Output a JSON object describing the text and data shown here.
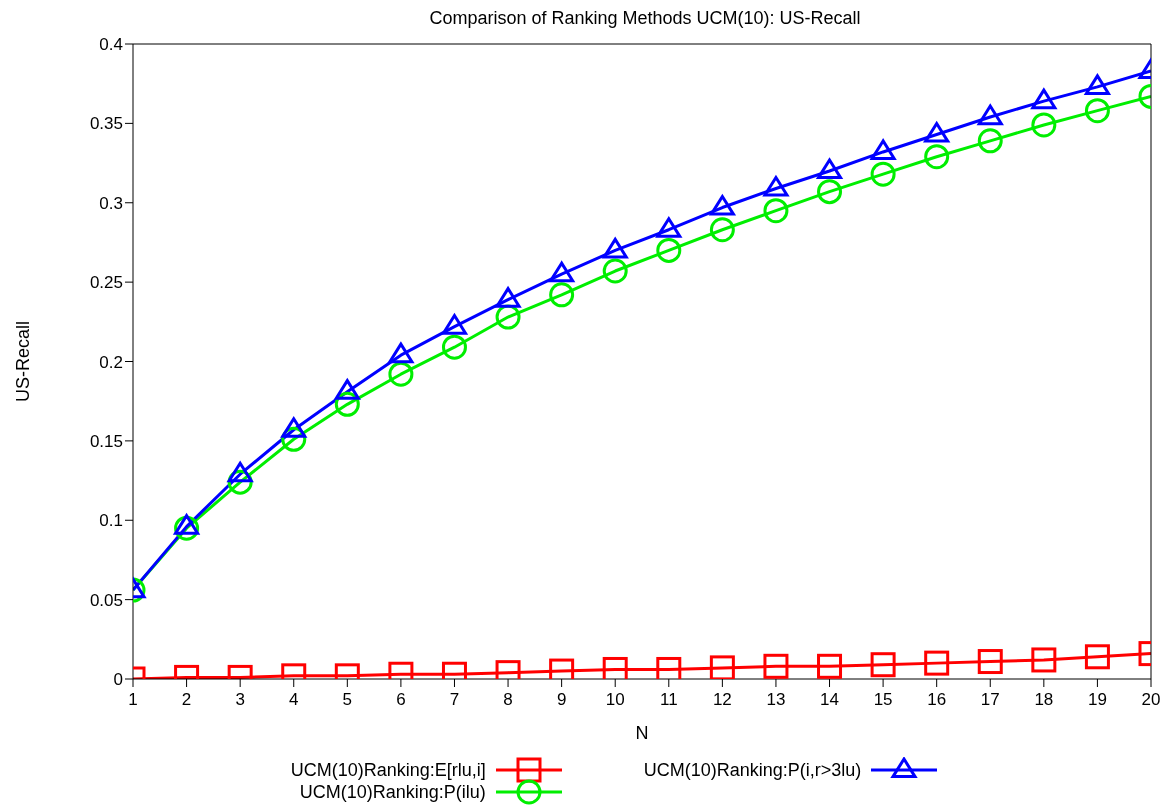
{
  "chart_data": {
    "type": "line",
    "title": "Comparison of Ranking Methods UCM(10): US-Recall",
    "xlabel": "N",
    "ylabel": "US-Recall",
    "x": [
      1,
      2,
      3,
      4,
      5,
      6,
      7,
      8,
      9,
      10,
      11,
      12,
      13,
      14,
      15,
      16,
      17,
      18,
      19,
      20
    ],
    "xlim": [
      1,
      20
    ],
    "xticks": [
      1,
      2,
      3,
      4,
      5,
      6,
      7,
      8,
      9,
      10,
      11,
      12,
      13,
      14,
      15,
      16,
      17,
      18,
      19,
      20
    ],
    "ylim": [
      0,
      0.4
    ],
    "yticks": [
      0,
      0.05,
      0.1,
      0.15,
      0.2,
      0.25,
      0.3,
      0.35,
      0.4
    ],
    "grid": false,
    "legend": "bottom",
    "line_style": "solid",
    "series": [
      {
        "name": "UCM(10)Ranking:E[rlu,i]",
        "color": "#ff0000",
        "marker": "square",
        "values": [
          0,
          0.001,
          0.001,
          0.002,
          0.002,
          0.003,
          0.003,
          0.004,
          0.005,
          0.006,
          0.006,
          0.007,
          0.008,
          0.008,
          0.009,
          0.01,
          0.011,
          0.012,
          0.014,
          0.016
        ]
      },
      {
        "name": "UCM(10)Ranking:P(ilu)",
        "color": "#00ee00",
        "marker": "circle",
        "values": [
          0.056,
          0.095,
          0.124,
          0.151,
          0.173,
          0.192,
          0.209,
          0.228,
          0.242,
          0.257,
          0.27,
          0.283,
          0.295,
          0.307,
          0.318,
          0.329,
          0.339,
          0.349,
          0.358,
          0.367
        ]
      },
      {
        "name": "UCM(10)Ranking:P(i,r>3lu)",
        "color": "#0000ff",
        "marker": "triangle",
        "values": [
          0.056,
          0.096,
          0.129,
          0.157,
          0.181,
          0.204,
          0.222,
          0.239,
          0.255,
          0.27,
          0.283,
          0.297,
          0.309,
          0.32,
          0.332,
          0.343,
          0.354,
          0.364,
          0.373,
          0.383
        ]
      }
    ]
  }
}
